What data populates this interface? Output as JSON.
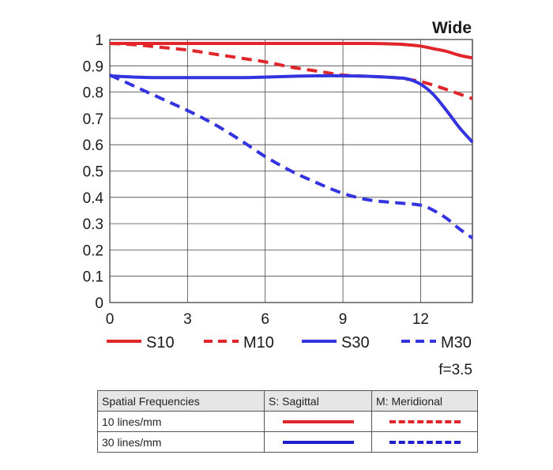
{
  "chart_data": {
    "type": "line",
    "title": "Wide",
    "xlabel": "",
    "ylabel": "",
    "xlim": [
      0,
      14
    ],
    "ylim": [
      0,
      1
    ],
    "x_ticks": [
      "0",
      "3",
      "6",
      "9",
      "12"
    ],
    "y_ticks": [
      "0",
      "0.1",
      "0.2",
      "0.3",
      "0.4",
      "0.5",
      "0.6",
      "0.7",
      "0.8",
      "0.9",
      "1"
    ],
    "grid": true,
    "legend_position": "bottom",
    "series": [
      {
        "name": "S10",
        "color": "#e0262a",
        "style": "solid",
        "x": [
          0,
          1,
          2,
          3,
          4,
          5,
          6,
          7,
          8,
          9,
          10,
          11,
          11.5,
          12,
          12.5,
          13,
          13.5,
          14
        ],
        "y": [
          0.985,
          0.985,
          0.985,
          0.985,
          0.985,
          0.985,
          0.985,
          0.985,
          0.985,
          0.985,
          0.985,
          0.983,
          0.98,
          0.975,
          0.965,
          0.955,
          0.94,
          0.93
        ]
      },
      {
        "name": "M10",
        "color": "#e0262a",
        "style": "dashed",
        "x": [
          0,
          1,
          2,
          3,
          4,
          5,
          6,
          7,
          8,
          9,
          10,
          11,
          12,
          13,
          14
        ],
        "y": [
          0.985,
          0.98,
          0.97,
          0.96,
          0.945,
          0.93,
          0.915,
          0.895,
          0.88,
          0.865,
          0.86,
          0.855,
          0.84,
          0.81,
          0.775
        ]
      },
      {
        "name": "S30",
        "color": "#3333e0",
        "style": "solid",
        "x": [
          0,
          1,
          2,
          3,
          4,
          5,
          6,
          7,
          8,
          9,
          10,
          11,
          11.5,
          12,
          12.5,
          13,
          13.5,
          14
        ],
        "y": [
          0.862,
          0.857,
          0.855,
          0.855,
          0.855,
          0.855,
          0.857,
          0.86,
          0.862,
          0.862,
          0.86,
          0.855,
          0.85,
          0.83,
          0.79,
          0.73,
          0.665,
          0.61
        ]
      },
      {
        "name": "M30",
        "color": "#3333e0",
        "style": "dashed",
        "x": [
          0,
          1,
          2,
          3,
          4,
          5,
          6,
          7,
          8,
          9,
          10,
          11,
          12,
          12.5,
          13,
          13.5,
          14
        ],
        "y": [
          0.865,
          0.82,
          0.775,
          0.73,
          0.68,
          0.62,
          0.555,
          0.5,
          0.455,
          0.415,
          0.39,
          0.38,
          0.37,
          0.35,
          0.32,
          0.28,
          0.245
        ]
      }
    ],
    "annotation": "f=3.5"
  },
  "table": {
    "headers": [
      "Spatial Frequencies",
      "S: Sagittal",
      "M: Meridional"
    ],
    "rows": [
      {
        "label": "10 lines/mm",
        "color": "#e0262a"
      },
      {
        "label": "30 lines/mm",
        "color": "#1f1fcc"
      }
    ]
  }
}
